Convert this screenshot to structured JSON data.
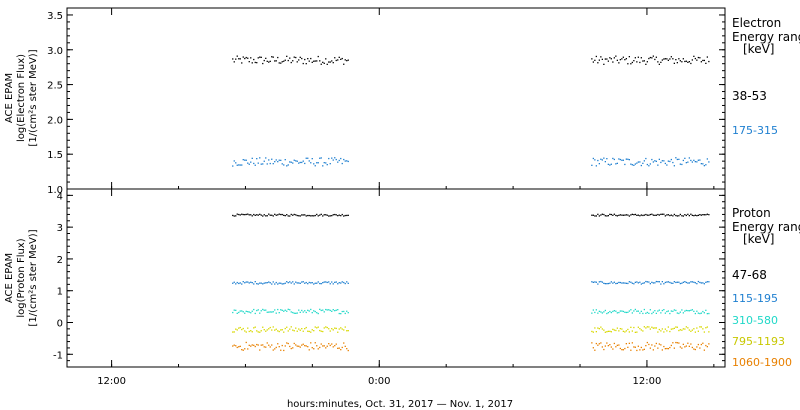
{
  "chart_data": [
    {
      "type": "scatter",
      "ylabel_lines": [
        "ACE EPAM",
        "log(Electron Flux)",
        "[1/(cm²s ster MeV)]"
      ],
      "ylim": [
        1.0,
        3.6
      ],
      "yticks": [
        "1.0",
        "1.5",
        "2.0",
        "2.5",
        "3.0",
        "3.5"
      ],
      "ytick_values": [
        1.0,
        1.5,
        2.0,
        2.5,
        3.0,
        3.5
      ],
      "legend_title_lines": [
        "Electron",
        "Energy range",
        "[keV]"
      ],
      "series": [
        {
          "name": "38-53",
          "color": "#000000",
          "mean": 2.85,
          "spread": 0.06
        },
        {
          "name": "175-315",
          "color": "#1e7fd0",
          "mean": 1.39,
          "spread": 0.06
        }
      ]
    },
    {
      "type": "scatter",
      "ylabel_lines": [
        "ACE EPAM",
        "log(Proton Flux)",
        "[1/(cm²s ster MeV)]"
      ],
      "ylim": [
        -1.4,
        4.2
      ],
      "yticks": [
        "-1",
        "0",
        "1",
        "2",
        "3",
        "4"
      ],
      "ytick_values": [
        -1,
        0,
        1,
        2,
        3,
        4
      ],
      "legend_title_lines": [
        "Proton",
        "Energy range",
        "[keV]"
      ],
      "series": [
        {
          "name": "47-68",
          "color": "#000000",
          "mean": 3.38,
          "spread": 0.03
        },
        {
          "name": "115-195",
          "color": "#1e7fd0",
          "mean": 1.25,
          "spread": 0.04
        },
        {
          "name": "310-580",
          "color": "#20d8c8",
          "mean": 0.35,
          "spread": 0.07
        },
        {
          "name": "795-1193",
          "color": "#d8d800",
          "mean": -0.22,
          "spread": 0.09
        },
        {
          "name": "1060-1900",
          "color": "#e88000",
          "mean": -0.75,
          "spread": 0.13
        }
      ]
    }
  ],
  "time_axis": {
    "range_hours": [
      10,
      39.5
    ],
    "ticks": [
      {
        "label": "12:00",
        "hour": 12
      },
      {
        "label": "0:00",
        "hour": 24
      },
      {
        "label": "12:00",
        "hour": 36
      }
    ],
    "data_segments_hours": [
      [
        17.4,
        22.6
      ],
      [
        33.5,
        38.8
      ]
    ],
    "xlabel": "hours:minutes, Oct. 31, 2017 — Nov.  1, 2017"
  }
}
